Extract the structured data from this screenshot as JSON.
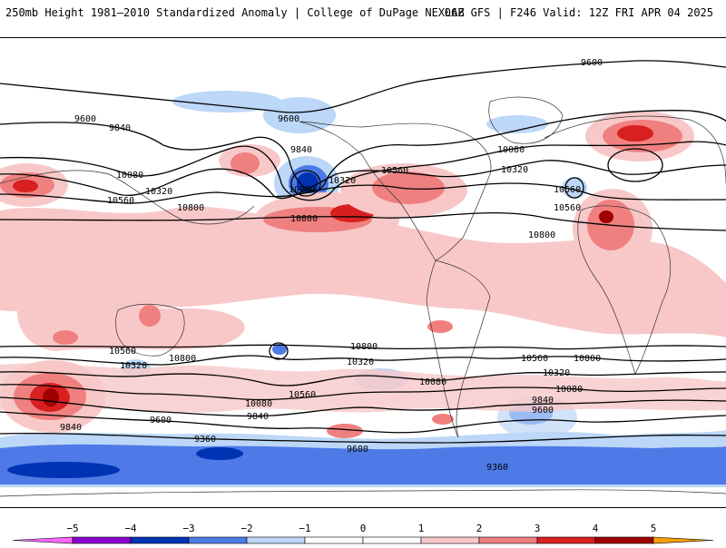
{
  "header": {
    "title_left": "250mb Height 1981–2010 Standardized Anomaly | College of DuPage NEXLAB",
    "title_right": "06Z GFS | F246 Valid: 12Z FRI APR 04 2025"
  },
  "map": {
    "projection": "global cylindrical",
    "contour_labels": [
      "9600",
      "9600",
      "9600",
      "9840",
      "9840",
      "10080",
      "10320",
      "10560",
      "10080",
      "10320",
      "10560",
      "10800",
      "10800",
      "10560",
      "10080",
      "10320",
      "10560",
      "10800",
      "10560",
      "10800",
      "10560",
      "10320",
      "10080",
      "10800",
      "10320",
      "10080",
      "9840",
      "9600",
      "10800",
      "10560",
      "10320",
      "10080",
      "9840",
      "9600",
      "10560",
      "10080",
      "9840",
      "9600",
      "9360",
      "9360",
      "9600"
    ],
    "anomaly_colors": {
      "neg5": "#ff66ff",
      "neg4": "#8b00cc",
      "neg3": "#0033b3",
      "neg2": "#4d7ae6",
      "neg1": "#bcd7f7",
      "zero": "#ffffff",
      "pos1": "#f8c8c8",
      "pos2": "#f08080",
      "pos3": "#d82020",
      "pos4": "#a00000",
      "pos5": "#f5a000"
    }
  },
  "colorbar": {
    "ticks": [
      "−5",
      "−4",
      "−3",
      "−2",
      "−1",
      "0",
      "1",
      "2",
      "3",
      "4",
      "5"
    ],
    "values": [
      -5,
      -4,
      -3,
      -2,
      -1,
      0,
      1,
      2,
      3,
      4,
      5
    ]
  }
}
